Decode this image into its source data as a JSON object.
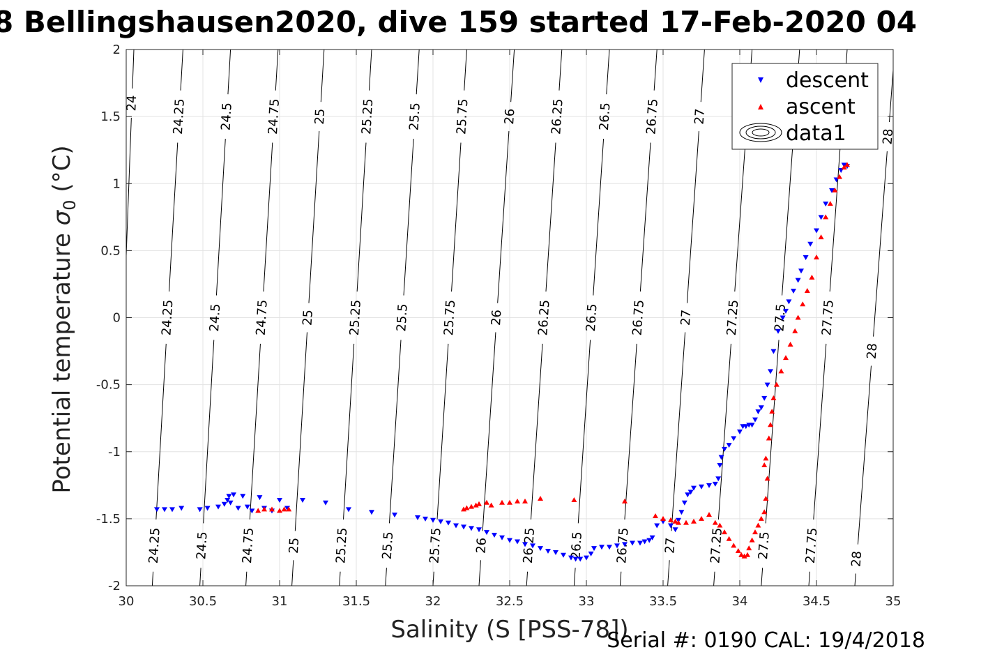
{
  "chart_data": {
    "type": "scatter",
    "title": "8 Bellingshausen2020, dive 159 started 17-Feb-2020 04",
    "xlabel": "Salinity (S [PSS-78])",
    "ylabel_main": "Potential temperature ",
    "ylabel_sigma": "σ",
    "ylabel_sub": "0",
    "ylabel_unit": " (°C)",
    "footer": "Serial #: 0190  CAL: 19/4/2018",
    "xlim": [
      30,
      35
    ],
    "ylim": [
      -2,
      2
    ],
    "xticks": [
      30,
      30.5,
      31,
      31.5,
      32,
      32.5,
      33,
      33.5,
      34,
      34.5,
      35
    ],
    "xtick_labels": [
      "30",
      "30.5",
      "31",
      "31.5",
      "32",
      "32.5",
      "33",
      "33.5",
      "34",
      "34.5",
      "35"
    ],
    "yticks": [
      -2,
      -1.5,
      -1,
      -0.5,
      0,
      0.5,
      1,
      1.5,
      2
    ],
    "ytick_labels": [
      "-2",
      "-1.5",
      "-1",
      "-0.5",
      "0",
      "0.5",
      "1",
      "1.5",
      "2"
    ],
    "grid": true,
    "legend": {
      "placement": "top-right",
      "entries": [
        {
          "name": "descent",
          "marker": "triangle-down",
          "color": "#0000ff"
        },
        {
          "name": "ascent",
          "marker": "triangle-up",
          "color": "#ff0000"
        },
        {
          "name": "data1",
          "marker": "contour",
          "color": "#000000"
        }
      ]
    },
    "contours": [
      {
        "level": "24",
        "bottom_s": 29.92,
        "top_s": 30.05,
        "labels": [
          1.6
        ]
      },
      {
        "level": "24.25",
        "bottom_s": 30.17,
        "top_s": 30.37,
        "labels": [
          -1.7,
          0.0,
          1.5
        ]
      },
      {
        "level": "24.5",
        "bottom_s": 30.48,
        "top_s": 30.68,
        "labels": [
          -1.7,
          0.0,
          1.5
        ]
      },
      {
        "level": "24.75",
        "bottom_s": 30.78,
        "top_s": 30.99,
        "labels": [
          -1.7,
          0.0,
          1.5
        ]
      },
      {
        "level": "25",
        "bottom_s": 31.08,
        "top_s": 31.29,
        "labels": [
          -1.7,
          0.0,
          1.5
        ]
      },
      {
        "level": "25.25",
        "bottom_s": 31.39,
        "top_s": 31.6,
        "labels": [
          -1.7,
          0.0,
          1.5
        ]
      },
      {
        "level": "25.5",
        "bottom_s": 31.69,
        "top_s": 31.91,
        "labels": [
          -1.7,
          0.0,
          1.5
        ]
      },
      {
        "level": "25.75",
        "bottom_s": 32.0,
        "top_s": 32.22,
        "labels": [
          -1.7,
          0.0,
          1.5
        ]
      },
      {
        "level": "26",
        "bottom_s": 32.3,
        "top_s": 32.53,
        "labels": [
          -1.7,
          0.0,
          1.5
        ]
      },
      {
        "level": "26.25",
        "bottom_s": 32.61,
        "top_s": 32.84,
        "labels": [
          -1.7,
          0.0,
          1.5
        ]
      },
      {
        "level": "26.5",
        "bottom_s": 32.92,
        "top_s": 33.15,
        "labels": [
          -1.7,
          0.0,
          1.5
        ]
      },
      {
        "level": "26.75",
        "bottom_s": 33.22,
        "top_s": 33.46,
        "labels": [
          -1.7,
          0.0,
          1.5
        ]
      },
      {
        "level": "27",
        "bottom_s": 33.53,
        "top_s": 33.77,
        "labels": [
          -1.7,
          0.0,
          1.5
        ]
      },
      {
        "level": "27.25",
        "bottom_s": 33.83,
        "top_s": 34.08,
        "labels": [
          -1.7,
          0.0,
          1.5
        ]
      },
      {
        "level": "27.5",
        "bottom_s": 34.14,
        "top_s": 34.39,
        "labels": [
          -1.7,
          0.0,
          1.5
        ]
      },
      {
        "level": "27.75",
        "bottom_s": 34.45,
        "top_s": 34.7,
        "labels": [
          -1.7,
          0.0,
          1.5
        ]
      },
      {
        "level": "28",
        "bottom_s": 34.75,
        "top_s": 35.01,
        "labels": [
          -1.8,
          -0.25,
          1.35
        ]
      }
    ],
    "series": [
      {
        "name": "descent",
        "color": "#0000ff",
        "marker": "triangle-down",
        "x": [
          30.2,
          30.25,
          30.3,
          30.36,
          30.48,
          30.53,
          30.6,
          30.64,
          30.66,
          30.67,
          30.68,
          30.7,
          30.73,
          30.76,
          30.79,
          30.82,
          30.87,
          30.9,
          30.95,
          31.0,
          31.05,
          31.15,
          31.3,
          31.45,
          31.6,
          31.75,
          31.9,
          31.95,
          32.0,
          32.05,
          32.1,
          32.15,
          32.2,
          32.25,
          32.3,
          32.35,
          32.4,
          32.45,
          32.5,
          32.55,
          32.6,
          32.65,
          32.7,
          32.75,
          32.8,
          32.85,
          32.9,
          32.93,
          32.96,
          33.0,
          33.03,
          33.05,
          33.1,
          33.15,
          33.2,
          33.25,
          33.3,
          33.35,
          33.38,
          33.41,
          33.43,
          33.46,
          33.5,
          33.55,
          33.58,
          33.6,
          33.62,
          33.64,
          33.66,
          33.68,
          33.7,
          33.75,
          33.8,
          33.84,
          33.86,
          33.87,
          33.88,
          33.9,
          33.93,
          33.96,
          34.0,
          34.02,
          34.04,
          34.06,
          34.08,
          34.1,
          34.12,
          34.14,
          34.16,
          34.18,
          34.2,
          34.22,
          34.25,
          34.28,
          34.3,
          34.32,
          34.35,
          34.38,
          34.4,
          34.43,
          34.46,
          34.5,
          34.53,
          34.56,
          34.6,
          34.63,
          34.66,
          34.68,
          34.7
        ],
        "y": [
          -1.43,
          -1.43,
          -1.43,
          -1.42,
          -1.43,
          -1.42,
          -1.41,
          -1.39,
          -1.36,
          -1.33,
          -1.38,
          -1.32,
          -1.42,
          -1.33,
          -1.41,
          -1.44,
          -1.34,
          -1.42,
          -1.44,
          -1.36,
          -1.42,
          -1.36,
          -1.38,
          -1.43,
          -1.45,
          -1.47,
          -1.49,
          -1.5,
          -1.51,
          -1.52,
          -1.53,
          -1.55,
          -1.56,
          -1.57,
          -1.58,
          -1.6,
          -1.62,
          -1.64,
          -1.66,
          -1.67,
          -1.69,
          -1.7,
          -1.72,
          -1.74,
          -1.75,
          -1.77,
          -1.79,
          -1.8,
          -1.8,
          -1.79,
          -1.76,
          -1.72,
          -1.71,
          -1.71,
          -1.7,
          -1.69,
          -1.68,
          -1.68,
          -1.67,
          -1.66,
          -1.64,
          -1.55,
          -1.52,
          -1.55,
          -1.58,
          -1.51,
          -1.45,
          -1.38,
          -1.32,
          -1.3,
          -1.27,
          -1.26,
          -1.25,
          -1.24,
          -1.2,
          -1.1,
          -1.04,
          -0.98,
          -0.95,
          -0.9,
          -0.85,
          -0.81,
          -0.81,
          -0.8,
          -0.8,
          -0.76,
          -0.7,
          -0.67,
          -0.6,
          -0.5,
          -0.4,
          -0.25,
          -0.1,
          0.0,
          0.05,
          0.12,
          0.2,
          0.28,
          0.35,
          0.45,
          0.55,
          0.65,
          0.75,
          0.85,
          0.95,
          1.03,
          1.1,
          1.14,
          1.13
        ]
      },
      {
        "name": "ascent",
        "color": "#ff0000",
        "marker": "triangle-up",
        "x": [
          30.86,
          30.9,
          30.95,
          31.0,
          31.03,
          31.06,
          32.2,
          32.22,
          32.25,
          32.28,
          32.3,
          32.35,
          32.38,
          32.45,
          32.5,
          32.55,
          32.6,
          32.7,
          32.92,
          33.25,
          33.45,
          33.5,
          33.55,
          33.58,
          33.6,
          33.65,
          33.7,
          33.75,
          33.8,
          33.84,
          33.87,
          33.9,
          33.93,
          33.96,
          33.99,
          34.01,
          34.03,
          34.05,
          34.06,
          34.08,
          34.1,
          34.12,
          34.14,
          34.16,
          34.17,
          34.18,
          34.16,
          34.17,
          34.19,
          34.2,
          34.21,
          34.22,
          34.24,
          34.27,
          34.3,
          34.33,
          34.36,
          34.38,
          34.41,
          34.44,
          34.47,
          34.5,
          34.53,
          34.56,
          34.59,
          34.62,
          34.65,
          34.68,
          34.7
        ],
        "y": [
          -1.44,
          -1.43,
          -1.43,
          -1.44,
          -1.43,
          -1.43,
          -1.43,
          -1.42,
          -1.41,
          -1.4,
          -1.39,
          -1.38,
          -1.4,
          -1.38,
          -1.38,
          -1.37,
          -1.37,
          -1.35,
          -1.36,
          -1.37,
          -1.48,
          -1.5,
          -1.51,
          -1.52,
          -1.53,
          -1.53,
          -1.52,
          -1.5,
          -1.47,
          -1.53,
          -1.55,
          -1.6,
          -1.65,
          -1.7,
          -1.74,
          -1.77,
          -1.78,
          -1.77,
          -1.72,
          -1.66,
          -1.6,
          -1.55,
          -1.5,
          -1.45,
          -1.35,
          -1.2,
          -1.1,
          -1.05,
          -0.9,
          -0.8,
          -0.7,
          -0.6,
          -0.5,
          -0.4,
          -0.3,
          -0.2,
          -0.1,
          0.0,
          0.1,
          0.2,
          0.3,
          0.45,
          0.6,
          0.75,
          0.85,
          0.95,
          1.05,
          1.12,
          1.14
        ]
      }
    ]
  }
}
